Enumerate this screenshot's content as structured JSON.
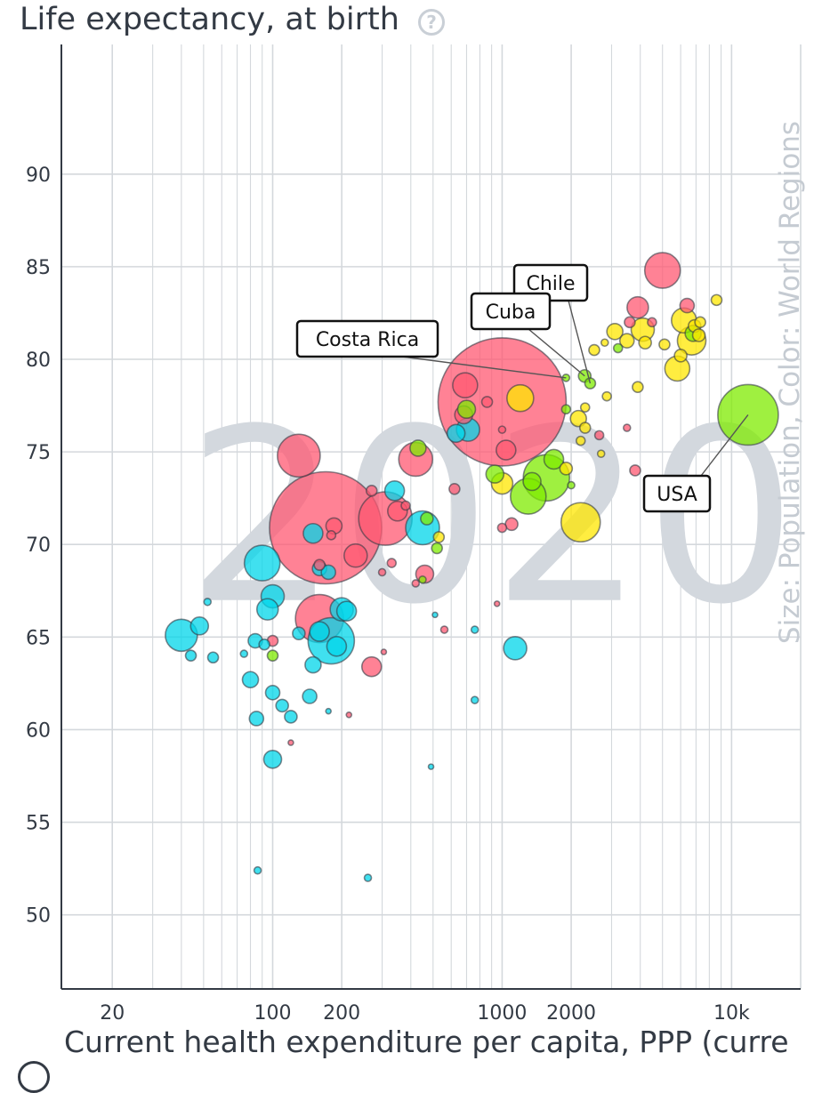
{
  "title": "Life expectancy, at birth",
  "help_icon": "question-mark-icon",
  "side_label": "Size: Population, Color: World Regions",
  "colors": {
    "americas": "#7feb00",
    "europe": "#ffe700",
    "asia": "#ff5872",
    "africa": "#00d5e9",
    "grid": "#d4d8dc",
    "axis": "#333a44",
    "year": "#d3d8de"
  },
  "chart_data": {
    "type": "scatter",
    "title": "Life expectancy, at birth",
    "xlabel": "Current health expenditure per capita, PPP (curre",
    "ylabel": "Life expectancy, at birth",
    "x_scale": "log",
    "xlim": [
      12,
      20000
    ],
    "ylim": [
      46,
      97
    ],
    "x_ticks": [
      {
        "value": 20,
        "label": "20"
      },
      {
        "value": 100,
        "label": "100"
      },
      {
        "value": 200,
        "label": "200"
      },
      {
        "value": 1000,
        "label": "1000"
      },
      {
        "value": 2000,
        "label": "2000"
      },
      {
        "value": 10000,
        "label": "10k"
      }
    ],
    "y_ticks": [
      {
        "value": 50,
        "label": "50"
      },
      {
        "value": 55,
        "label": "55"
      },
      {
        "value": 60,
        "label": "60"
      },
      {
        "value": 65,
        "label": "65"
      },
      {
        "value": 70,
        "label": "70"
      },
      {
        "value": 75,
        "label": "75"
      },
      {
        "value": 80,
        "label": "80"
      },
      {
        "value": 85,
        "label": "85"
      },
      {
        "value": 90,
        "label": "90"
      }
    ],
    "year_label": "2020",
    "annotations": [
      {
        "text": "Chile",
        "x": 2420,
        "y": 78.7
      },
      {
        "text": "Cuba",
        "x": 2290,
        "y": 79.1
      },
      {
        "text": "Costa Rica",
        "x": 1900,
        "y": 79.0
      },
      {
        "text": "USA",
        "x": 11800,
        "y": 77.0
      }
    ],
    "points": [
      {
        "x": 1000,
        "y": 77.7,
        "size": 72,
        "region": "asia"
      },
      {
        "x": 170,
        "y": 70.9,
        "size": 63,
        "region": "asia"
      },
      {
        "x": 11800,
        "y": 77.0,
        "size": 34,
        "region": "americas"
      },
      {
        "x": 160,
        "y": 66.0,
        "size": 27,
        "region": "asia"
      },
      {
        "x": 180,
        "y": 64.8,
        "size": 26,
        "region": "africa"
      },
      {
        "x": 310,
        "y": 71.4,
        "size": 30,
        "region": "asia"
      },
      {
        "x": 130,
        "y": 74.8,
        "size": 24,
        "region": "asia"
      },
      {
        "x": 1560,
        "y": 73.6,
        "size": 26,
        "region": "americas"
      },
      {
        "x": 1300,
        "y": 72.6,
        "size": 20,
        "region": "americas"
      },
      {
        "x": 2200,
        "y": 71.2,
        "size": 22,
        "region": "europe"
      },
      {
        "x": 5000,
        "y": 84.8,
        "size": 20,
        "region": "asia"
      },
      {
        "x": 420,
        "y": 74.6,
        "size": 19,
        "region": "asia"
      },
      {
        "x": 450,
        "y": 70.9,
        "size": 19,
        "region": "africa"
      },
      {
        "x": 90,
        "y": 69.0,
        "size": 20,
        "region": "africa"
      },
      {
        "x": 40,
        "y": 65.1,
        "size": 18,
        "region": "africa"
      },
      {
        "x": 1200,
        "y": 77.9,
        "size": 15,
        "region": "europe"
      },
      {
        "x": 6700,
        "y": 81.0,
        "size": 16,
        "region": "europe"
      },
      {
        "x": 5800,
        "y": 79.5,
        "size": 14,
        "region": "europe"
      },
      {
        "x": 6200,
        "y": 82.1,
        "size": 14,
        "region": "europe"
      },
      {
        "x": 4100,
        "y": 81.6,
        "size": 13,
        "region": "europe"
      },
      {
        "x": 3900,
        "y": 82.8,
        "size": 12,
        "region": "asia"
      },
      {
        "x": 690,
        "y": 78.6,
        "size": 14,
        "region": "asia"
      },
      {
        "x": 710,
        "y": 76.2,
        "size": 13,
        "region": "africa"
      },
      {
        "x": 1040,
        "y": 75.1,
        "size": 11,
        "region": "asia"
      },
      {
        "x": 1000,
        "y": 73.3,
        "size": 12,
        "region": "europe"
      },
      {
        "x": 1680,
        "y": 74.6,
        "size": 11,
        "region": "americas"
      },
      {
        "x": 1350,
        "y": 73.4,
        "size": 10,
        "region": "americas"
      },
      {
        "x": 930,
        "y": 73.8,
        "size": 10,
        "region": "americas"
      },
      {
        "x": 230,
        "y": 69.4,
        "size": 13,
        "region": "asia"
      },
      {
        "x": 200,
        "y": 66.5,
        "size": 13,
        "region": "africa"
      },
      {
        "x": 210,
        "y": 66.4,
        "size": 11,
        "region": "africa"
      },
      {
        "x": 100,
        "y": 67.2,
        "size": 13,
        "region": "africa"
      },
      {
        "x": 95,
        "y": 66.5,
        "size": 12,
        "region": "africa"
      },
      {
        "x": 160,
        "y": 65.3,
        "size": 11,
        "region": "africa"
      },
      {
        "x": 190,
        "y": 64.5,
        "size": 11,
        "region": "africa"
      },
      {
        "x": 150,
        "y": 70.6,
        "size": 11,
        "region": "africa"
      },
      {
        "x": 340,
        "y": 72.9,
        "size": 11,
        "region": "africa"
      },
      {
        "x": 350,
        "y": 71.8,
        "size": 11,
        "region": "asia"
      },
      {
        "x": 630,
        "y": 76.0,
        "size": 10,
        "region": "africa"
      },
      {
        "x": 680,
        "y": 77.0,
        "size": 10,
        "region": "asia"
      },
      {
        "x": 700,
        "y": 77.3,
        "size": 10,
        "region": "americas"
      },
      {
        "x": 1140,
        "y": 64.4,
        "size": 13,
        "region": "africa"
      },
      {
        "x": 270,
        "y": 63.4,
        "size": 11,
        "region": "asia"
      },
      {
        "x": 460,
        "y": 68.4,
        "size": 10,
        "region": "asia"
      },
      {
        "x": 100,
        "y": 58.4,
        "size": 10,
        "region": "africa"
      },
      {
        "x": 48,
        "y": 65.6,
        "size": 10,
        "region": "africa"
      },
      {
        "x": 185,
        "y": 71.0,
        "size": 9,
        "region": "asia"
      },
      {
        "x": 160,
        "y": 68.7,
        "size": 8,
        "region": "africa"
      },
      {
        "x": 175,
        "y": 68.5,
        "size": 8,
        "region": "africa"
      },
      {
        "x": 84,
        "y": 64.8,
        "size": 8,
        "region": "africa"
      },
      {
        "x": 80,
        "y": 62.7,
        "size": 9,
        "region": "africa"
      },
      {
        "x": 85,
        "y": 60.6,
        "size": 8,
        "region": "africa"
      },
      {
        "x": 100,
        "y": 62.0,
        "size": 8,
        "region": "africa"
      },
      {
        "x": 110,
        "y": 61.3,
        "size": 7,
        "region": "africa"
      },
      {
        "x": 120,
        "y": 60.7,
        "size": 7,
        "region": "africa"
      },
      {
        "x": 145,
        "y": 61.8,
        "size": 8,
        "region": "africa"
      },
      {
        "x": 150,
        "y": 63.5,
        "size": 9,
        "region": "africa"
      },
      {
        "x": 130,
        "y": 65.2,
        "size": 7,
        "region": "africa"
      },
      {
        "x": 100,
        "y": 64.8,
        "size": 6,
        "region": "asia"
      },
      {
        "x": 92,
        "y": 64.6,
        "size": 6,
        "region": "africa"
      },
      {
        "x": 100,
        "y": 64.0,
        "size": 6,
        "region": "americas"
      },
      {
        "x": 55,
        "y": 63.9,
        "size": 6,
        "region": "africa"
      },
      {
        "x": 44,
        "y": 64.0,
        "size": 6,
        "region": "africa"
      },
      {
        "x": 3100,
        "y": 81.5,
        "size": 9,
        "region": "europe"
      },
      {
        "x": 3500,
        "y": 81.0,
        "size": 8,
        "region": "europe"
      },
      {
        "x": 4200,
        "y": 80.9,
        "size": 7,
        "region": "europe"
      },
      {
        "x": 6000,
        "y": 80.2,
        "size": 7,
        "region": "europe"
      },
      {
        "x": 6400,
        "y": 82.9,
        "size": 8,
        "region": "asia"
      },
      {
        "x": 6900,
        "y": 81.8,
        "size": 7,
        "region": "europe"
      },
      {
        "x": 7300,
        "y": 82.0,
        "size": 6,
        "region": "europe"
      },
      {
        "x": 8600,
        "y": 83.2,
        "size": 6,
        "region": "europe"
      },
      {
        "x": 6800,
        "y": 81.4,
        "size": 9,
        "region": "americas"
      },
      {
        "x": 7200,
        "y": 81.3,
        "size": 7,
        "region": "europe"
      },
      {
        "x": 5100,
        "y": 80.8,
        "size": 6,
        "region": "europe"
      },
      {
        "x": 3600,
        "y": 82.0,
        "size": 6,
        "region": "asia"
      },
      {
        "x": 2520,
        "y": 80.5,
        "size": 6,
        "region": "europe"
      },
      {
        "x": 2150,
        "y": 76.8,
        "size": 9,
        "region": "europe"
      },
      {
        "x": 2300,
        "y": 76.3,
        "size": 6,
        "region": "europe"
      },
      {
        "x": 1900,
        "y": 74.1,
        "size": 7,
        "region": "europe"
      },
      {
        "x": 2650,
        "y": 75.9,
        "size": 5,
        "region": "asia"
      },
      {
        "x": 2700,
        "y": 74.9,
        "size": 4,
        "region": "europe"
      },
      {
        "x": 2420,
        "y": 78.7,
        "size": 6,
        "region": "americas"
      },
      {
        "x": 2290,
        "y": 79.1,
        "size": 7,
        "region": "americas"
      },
      {
        "x": 1900,
        "y": 79.0,
        "size": 4,
        "region": "americas"
      },
      {
        "x": 3900,
        "y": 78.5,
        "size": 6,
        "region": "europe"
      },
      {
        "x": 3800,
        "y": 74.0,
        "size": 6,
        "region": "asia"
      },
      {
        "x": 3500,
        "y": 76.3,
        "size": 4,
        "region": "asia"
      },
      {
        "x": 2200,
        "y": 75.6,
        "size": 5,
        "region": "europe"
      },
      {
        "x": 1100,
        "y": 71.1,
        "size": 7,
        "region": "asia"
      },
      {
        "x": 1000,
        "y": 70.9,
        "size": 5,
        "region": "asia"
      },
      {
        "x": 530,
        "y": 70.4,
        "size": 6,
        "region": "europe"
      },
      {
        "x": 520,
        "y": 69.8,
        "size": 6,
        "region": "americas"
      },
      {
        "x": 470,
        "y": 71.4,
        "size": 7,
        "region": "americas"
      },
      {
        "x": 430,
        "y": 75.2,
        "size": 9,
        "region": "americas"
      },
      {
        "x": 380,
        "y": 72.1,
        "size": 5,
        "region": "asia"
      },
      {
        "x": 330,
        "y": 69.0,
        "size": 5,
        "region": "asia"
      },
      {
        "x": 180,
        "y": 70.5,
        "size": 5,
        "region": "asia"
      },
      {
        "x": 160,
        "y": 68.9,
        "size": 6,
        "region": "asia"
      },
      {
        "x": 270,
        "y": 72.9,
        "size": 6,
        "region": "asia"
      },
      {
        "x": 860,
        "y": 77.7,
        "size": 6,
        "region": "asia"
      },
      {
        "x": 1000,
        "y": 76.2,
        "size": 4,
        "region": "asia"
      },
      {
        "x": 620,
        "y": 73.0,
        "size": 6,
        "region": "asia"
      },
      {
        "x": 1900,
        "y": 77.3,
        "size": 5,
        "region": "americas"
      },
      {
        "x": 2300,
        "y": 77.4,
        "size": 5,
        "region": "europe"
      },
      {
        "x": 2000,
        "y": 73.2,
        "size": 4,
        "region": "americas"
      },
      {
        "x": 300,
        "y": 68.5,
        "size": 4,
        "region": "asia"
      },
      {
        "x": 420,
        "y": 67.9,
        "size": 4,
        "region": "asia"
      },
      {
        "x": 450,
        "y": 68.1,
        "size": 4,
        "region": "americas"
      },
      {
        "x": 560,
        "y": 65.4,
        "size": 4,
        "region": "asia"
      },
      {
        "x": 760,
        "y": 65.4,
        "size": 4,
        "region": "africa"
      },
      {
        "x": 760,
        "y": 61.6,
        "size": 4,
        "region": "africa"
      },
      {
        "x": 510,
        "y": 66.2,
        "size": 3,
        "region": "africa"
      },
      {
        "x": 490,
        "y": 58.0,
        "size": 3,
        "region": "africa"
      },
      {
        "x": 260,
        "y": 52.0,
        "size": 4,
        "region": "africa"
      },
      {
        "x": 86,
        "y": 52.4,
        "size": 4,
        "region": "africa"
      },
      {
        "x": 52,
        "y": 66.9,
        "size": 4,
        "region": "africa"
      },
      {
        "x": 75,
        "y": 64.1,
        "size": 4,
        "region": "africa"
      },
      {
        "x": 120,
        "y": 59.3,
        "size": 3,
        "region": "asia"
      },
      {
        "x": 175,
        "y": 61.0,
        "size": 3,
        "region": "africa"
      },
      {
        "x": 215,
        "y": 60.8,
        "size": 3,
        "region": "asia"
      },
      {
        "x": 305,
        "y": 64.2,
        "size": 3,
        "region": "asia"
      },
      {
        "x": 950,
        "y": 66.8,
        "size": 3,
        "region": "asia"
      },
      {
        "x": 2860,
        "y": 78.0,
        "size": 5,
        "region": "europe"
      },
      {
        "x": 3200,
        "y": 80.6,
        "size": 5,
        "region": "americas"
      },
      {
        "x": 4500,
        "y": 82.0,
        "size": 5,
        "region": "asia"
      },
      {
        "x": 2800,
        "y": 80.9,
        "size": 4,
        "region": "europe"
      }
    ]
  }
}
